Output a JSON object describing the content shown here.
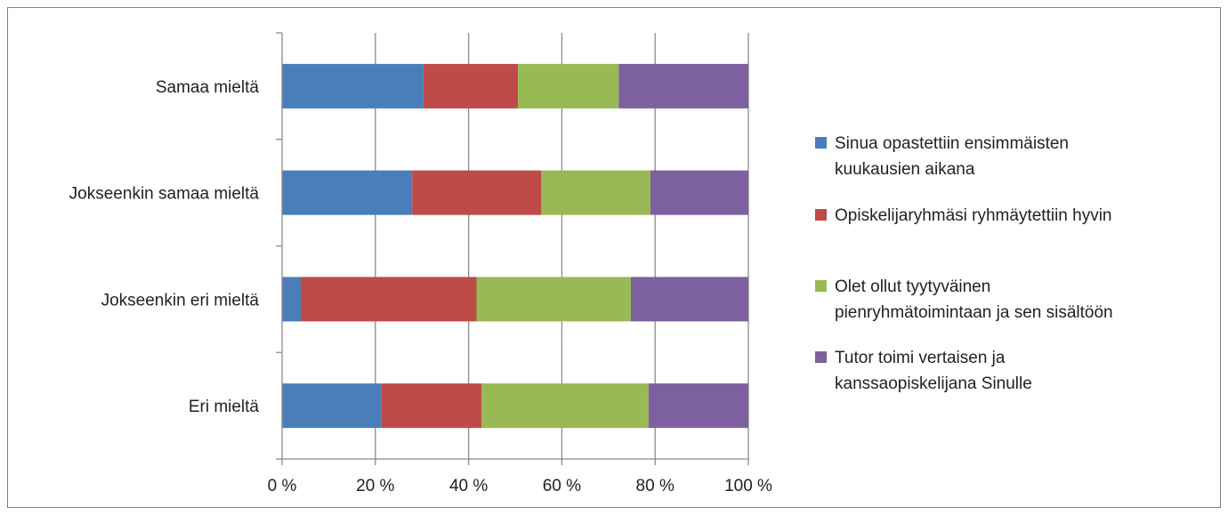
{
  "chart_data": {
    "type": "bar",
    "orientation": "horizontal",
    "stacked": "percent",
    "title": "",
    "xlabel": "",
    "ylabel": "",
    "xlim": [
      0,
      100
    ],
    "x_ticks": [
      "0 %",
      "20 %",
      "40 %",
      "60 %",
      "80 %",
      "100 %"
    ],
    "grid": "vertical",
    "legend_position": "right",
    "categories": [
      "Samaa mieltä",
      "Jokseenkin samaa mieltä",
      "Jokseenkin eri mieltä",
      "Eri mieltä"
    ],
    "series": [
      {
        "name": "Sinua opastettiin ensimmäisten kuukausien aikana",
        "legend_lines": [
          "Sinua opastettiin ensimmäisten",
          "kuukausien aikana"
        ],
        "color": "#4a7ebb",
        "values": [
          30.3,
          27.9,
          4.0,
          21.3
        ]
      },
      {
        "name": "Opiskelijaryhmäsi ryhmäytettiin hyvin",
        "legend_lines": [
          "Opiskelijaryhmäsi ryhmäytettiin hyvin"
        ],
        "color": "#be4b48",
        "values": [
          20.3,
          27.7,
          37.7,
          21.5
        ]
      },
      {
        "name": "Olet ollut tyytyväinen pienryhmätoimintaan ja sen sisältöön",
        "legend_lines": [
          "Olet ollut tyytyväinen",
          "pienryhmätoimintaan ja sen sisältöön"
        ],
        "color": "#98b954",
        "values": [
          21.6,
          23.4,
          33.1,
          35.8
        ]
      },
      {
        "name": "Tutor toimi vertaisen ja kanssaopiskelijana Sinulle",
        "legend_lines": [
          "Tutor toimi vertaisen ja",
          "kanssaopiskelijana Sinulle"
        ],
        "color": "#7d60a0",
        "values": [
          27.8,
          21.0,
          25.2,
          21.4
        ]
      }
    ]
  }
}
